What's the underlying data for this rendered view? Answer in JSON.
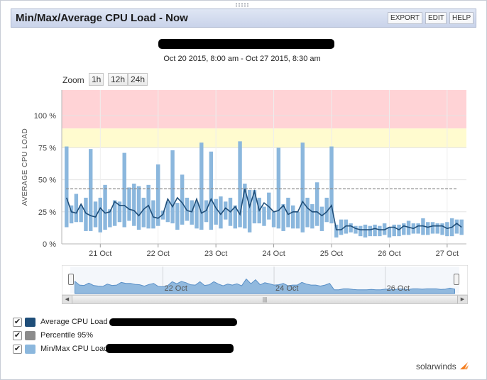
{
  "header": {
    "title": "Min/Max/Average CPU Load - Now",
    "buttons": [
      "EXPORT",
      "EDIT",
      "HELP"
    ]
  },
  "subtitle": "Oct 20 2015, 8:00 am - Oct 27 2015, 8:30 am",
  "zoom": {
    "label": "Zoom",
    "buttons": [
      "1h",
      "12h",
      "24h"
    ]
  },
  "chart_data": {
    "type": "line",
    "ylabel": "AVERAGE CPU LOAD",
    "ylim": [
      0,
      120
    ],
    "y_ticks": [
      "0 %",
      "25 %",
      "50 %",
      "75 %",
      "100 %"
    ],
    "x_ticks": [
      "21 Oct",
      "22 Oct",
      "23 Oct",
      "24 Oct",
      "25 Oct",
      "26 Oct",
      "27 Oct"
    ],
    "x_range_hours": [
      0,
      168
    ],
    "x_tick_hours": [
      16,
      40,
      64,
      88,
      112,
      136,
      160
    ],
    "bands": [
      {
        "from": 90,
        "to": 120,
        "color": "#ffd3d6"
      },
      {
        "from": 75,
        "to": 90,
        "color": "#fffbcf"
      }
    ],
    "percentile_95": 43,
    "series": [
      {
        "name": "Average CPU Load",
        "color": "#1f4e79",
        "x": [
          2,
          4,
          6,
          8,
          10,
          12,
          14,
          16,
          18,
          20,
          22,
          24,
          26,
          28,
          30,
          32,
          34,
          36,
          38,
          40,
          42,
          44,
          46,
          48,
          50,
          52,
          54,
          56,
          58,
          60,
          62,
          64,
          66,
          68,
          70,
          72,
          74,
          76,
          78,
          80,
          82,
          84,
          86,
          88,
          90,
          92,
          94,
          96,
          98,
          100,
          102,
          104,
          106,
          108,
          110,
          112,
          114,
          116,
          118,
          120,
          122,
          124,
          126,
          128,
          130,
          132,
          134,
          136,
          138,
          140,
          142,
          144,
          146,
          148,
          150,
          152,
          154,
          156,
          158,
          160,
          162,
          164,
          166
        ],
        "values": [
          36,
          25,
          24,
          31,
          24,
          22,
          21,
          28,
          24,
          25,
          33,
          30,
          30,
          27,
          26,
          22,
          27,
          30,
          21,
          20,
          23,
          35,
          29,
          36,
          32,
          26,
          25,
          35,
          24,
          26,
          35,
          28,
          23,
          28,
          25,
          29,
          23,
          43,
          29,
          41,
          26,
          32,
          29,
          25,
          26,
          30,
          23,
          25,
          25,
          33,
          28,
          25,
          25,
          22,
          25,
          30,
          11,
          11,
          14,
          14,
          12,
          11,
          11,
          11,
          12,
          11,
          11,
          13,
          13,
          11,
          14,
          13,
          12,
          14,
          14,
          13,
          14,
          14,
          14,
          12,
          13,
          16,
          13
        ]
      },
      {
        "name": "Min/Max CPU Load",
        "color": "#8bb7dd",
        "x": [
          2,
          4,
          6,
          8,
          10,
          12,
          14,
          16,
          18,
          20,
          22,
          24,
          26,
          28,
          30,
          32,
          34,
          36,
          38,
          40,
          42,
          44,
          46,
          48,
          50,
          52,
          54,
          56,
          58,
          60,
          62,
          64,
          66,
          68,
          70,
          72,
          74,
          76,
          78,
          80,
          82,
          84,
          86,
          88,
          90,
          92,
          94,
          96,
          98,
          100,
          102,
          104,
          106,
          108,
          110,
          112,
          114,
          116,
          118,
          120,
          122,
          124,
          126,
          128,
          130,
          132,
          134,
          136,
          138,
          140,
          142,
          144,
          146,
          148,
          150,
          152,
          154,
          156,
          158,
          160,
          162,
          164,
          166
        ],
        "min": [
          13,
          16,
          17,
          17,
          10,
          10,
          13,
          9,
          11,
          13,
          14,
          17,
          13,
          18,
          14,
          11,
          13,
          12,
          12,
          14,
          19,
          17,
          16,
          11,
          15,
          18,
          15,
          12,
          11,
          17,
          11,
          15,
          12,
          19,
          14,
          12,
          13,
          12,
          9,
          16,
          16,
          14,
          19,
          13,
          12,
          10,
          13,
          12,
          12,
          9,
          13,
          12,
          14,
          10,
          17,
          16,
          5,
          7,
          8,
          9,
          8,
          6,
          5,
          6,
          6,
          6,
          7,
          5,
          6,
          6,
          7,
          7,
          8,
          8,
          7,
          7,
          8,
          8,
          7,
          6,
          6,
          8,
          7
        ],
        "max": [
          76,
          30,
          39,
          30,
          36,
          74,
          33,
          36,
          46,
          27,
          34,
          33,
          71,
          44,
          47,
          45,
          36,
          46,
          34,
          62,
          26,
          33,
          73,
          32,
          54,
          36,
          34,
          33,
          79,
          34,
          72,
          35,
          37,
          33,
          36,
          30,
          80,
          47,
          42,
          42,
          36,
          29,
          40,
          25,
          75,
          31,
          36,
          30,
          25,
          79,
          36,
          31,
          48,
          29,
          36,
          76,
          15,
          19,
          19,
          16,
          14,
          14,
          15,
          14,
          15,
          14,
          16,
          13,
          15,
          15,
          16,
          18,
          16,
          16,
          20,
          17,
          17,
          16,
          16,
          17,
          20,
          19,
          19
        ]
      }
    ]
  },
  "navigator": {
    "x_ticks": [
      "22 Oct",
      "24 Oct",
      "26 Oct"
    ],
    "scroll_glyph": "|||",
    "left_arrow": "◀",
    "right_arrow": "▶"
  },
  "legend": [
    {
      "label": "Average CPU Load",
      "color": "#1f4e79",
      "checked": true
    },
    {
      "label": "Percentile 95%",
      "color": "#8c8c8c",
      "checked": true
    },
    {
      "label": "Min/Max CPU Load",
      "color": "#8bb7dd",
      "checked": true
    }
  ],
  "checkmark": "✔",
  "brand": "solarwinds"
}
